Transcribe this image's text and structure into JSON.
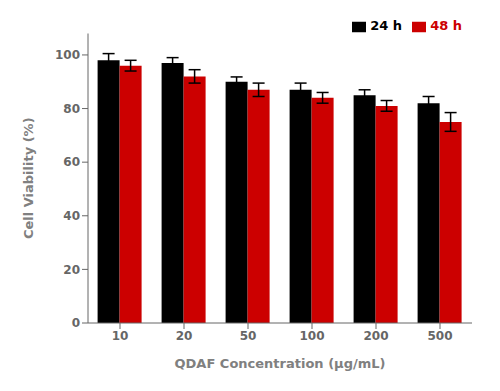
{
  "chart_data": {
    "type": "bar",
    "xlabel": "QDAF Concentration (μg/mL)",
    "ylabel": "Cell Viability (%)",
    "categories": [
      "10",
      "20",
      "50",
      "100",
      "200",
      "500"
    ],
    "series": [
      {
        "name": "24 h",
        "color": "#000000",
        "values": [
          98.0,
          97.0,
          90.0,
          87.0,
          85.0,
          82.0
        ],
        "errors": [
          2.5,
          2.0,
          1.8,
          2.5,
          2.0,
          2.5
        ]
      },
      {
        "name": "48 h",
        "color": "#cc0000",
        "values": [
          96.0,
          92.0,
          87.0,
          84.0,
          81.0,
          75.0
        ],
        "errors": [
          2.0,
          2.5,
          2.5,
          2.0,
          2.0,
          3.5
        ]
      }
    ],
    "ylim": [
      0,
      108
    ],
    "yticks": [
      0,
      20,
      40,
      60,
      80,
      100
    ],
    "grid": false,
    "legend": "upper right"
  }
}
